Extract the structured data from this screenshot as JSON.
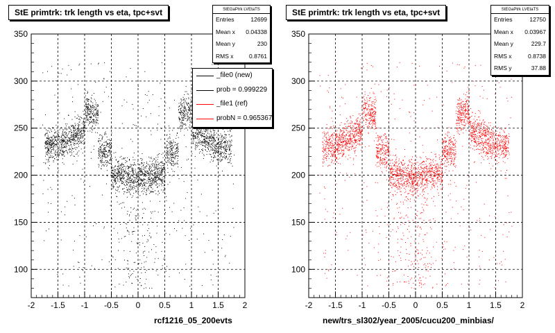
{
  "chart_data": [
    {
      "type": "scatter",
      "title": "StE primtrk: trk length vs eta, tpc+svt",
      "xlabel": "rcf1216_05_200evts",
      "ylabel": "",
      "xlim": [
        -2,
        2
      ],
      "ylim": [
        70,
        350
      ],
      "xticks": [
        "-2",
        "-1.5",
        "-1",
        "-0.5",
        "0",
        "0.5",
        "1",
        "1.5",
        "2"
      ],
      "yticks": [
        "100",
        "150",
        "200",
        "250",
        "300",
        "350"
      ],
      "grid": true,
      "marker_color": "#000000",
      "stats": {
        "header": "StEGaPtrk LVEtaTS",
        "entries": [
          {
            "label": "Entries",
            "value": "12699"
          },
          {
            "label": "Mean x",
            "value": "0.04338"
          },
          {
            "label": "Mean y",
            "value": "230"
          },
          {
            "label": "RMS x",
            "value": "0.8761"
          }
        ]
      },
      "legend": {
        "placement": "top-right",
        "entries": [
          {
            "label": "_file0 (new)",
            "color": "#000000"
          },
          {
            "label": "prob = 0.999229",
            "color": "#000000"
          },
          {
            "label": "_file1 (ref)",
            "color": "#ff0000"
          },
          {
            "label": "probN = 0.965367",
            "color": "#ff0000"
          }
        ]
      },
      "series": [
        {
          "n": 12699
        }
      ]
    },
    {
      "type": "scatter",
      "title": "StE primtrk: trk length vs eta, tpc+svt",
      "xlabel": "new/trs_sl302/year_2005/cucu200_minbias/",
      "ylabel": "",
      "xlim": [
        -2,
        2
      ],
      "ylim": [
        70,
        350
      ],
      "xticks": [
        "-2",
        "-1.5",
        "-1",
        "-0.5",
        "0",
        "0.5",
        "1",
        "1.5",
        "2"
      ],
      "yticks": [
        "100",
        "150",
        "200",
        "250",
        "300",
        "350"
      ],
      "grid": true,
      "marker_color": "#ff0000",
      "stats": {
        "header": "StEGaPtrk LVEtaTS",
        "entries": [
          {
            "label": "Entries",
            "value": "12750"
          },
          {
            "label": "Mean x",
            "value": "0.03967"
          },
          {
            "label": "Mean y",
            "value": "229.7"
          },
          {
            "label": "RMS x",
            "value": "0.8738"
          },
          {
            "label": "RMS y",
            "value": "37.88"
          }
        ]
      },
      "series": [
        {
          "n": 12750
        }
      ]
    }
  ]
}
